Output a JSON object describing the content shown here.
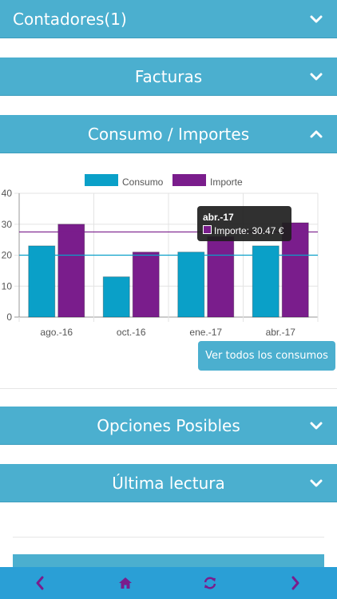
{
  "sections": {
    "contadores": "Contadores(1)",
    "facturas": "Facturas",
    "consumo": "Consumo / Importes",
    "opciones": "Opciones Posibles",
    "ultima": "Última lectura"
  },
  "chart_data": {
    "type": "bar",
    "categories": [
      "ago.-16",
      "oct.-16",
      "ene.-17",
      "abr.-17"
    ],
    "series": [
      {
        "name": "Consumo",
        "values": [
          23,
          13,
          21,
          23
        ],
        "color": "#0aa0c8"
      },
      {
        "name": "Importe",
        "values": [
          30,
          21,
          26,
          30.47
        ],
        "color": "#7a1d8c"
      }
    ],
    "reference_lines": [
      {
        "series": "Importe",
        "value": 27.5,
        "color": "#7a1d8c"
      },
      {
        "series": "Consumo",
        "value": 20,
        "color": "#0aa0c8"
      }
    ],
    "ylim": [
      0,
      40
    ],
    "yticks": [
      0,
      10,
      20,
      30,
      40
    ],
    "legend_position": "top-center",
    "grid": true
  },
  "tooltip": {
    "title": "abr.-17",
    "text": "Importe: 30.47 €"
  },
  "buttons": {
    "ver_consumos": "Ver todos los consumos"
  },
  "nav": {
    "icons": [
      "chevron-left-icon",
      "home-icon",
      "refresh-icon",
      "chevron-right-icon"
    ],
    "color": "#7a1d8c"
  },
  "colors": {
    "accent": "#4bafcf",
    "bottom_bar": "#2a9fd6"
  }
}
